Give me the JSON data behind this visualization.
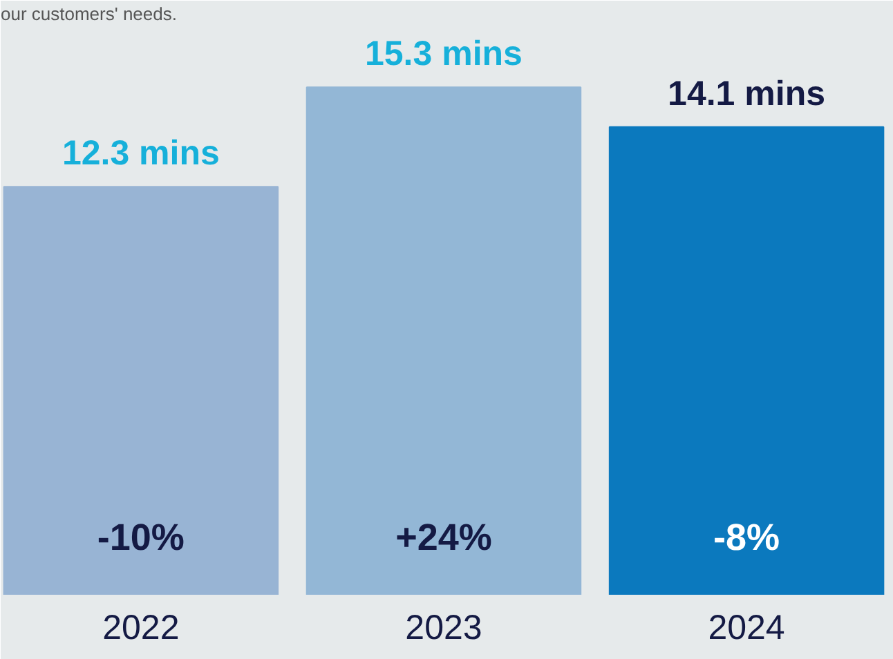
{
  "chart_data": {
    "type": "bar",
    "subtitle": "our customers' needs.",
    "categories": [
      "2022",
      "2023",
      "2024"
    ],
    "values": [
      12.3,
      15.3,
      14.1
    ],
    "colors": [
      "#98b4d4",
      "#93b7d6",
      "#0b79be"
    ],
    "value_labels": [
      "12.3 mins",
      "15.3 mins",
      "14.1 mins"
    ],
    "ylim": [
      0,
      17.2
    ],
    "grid": false,
    "annotations": [
      "-10%",
      "+24%",
      "-8%"
    ]
  }
}
